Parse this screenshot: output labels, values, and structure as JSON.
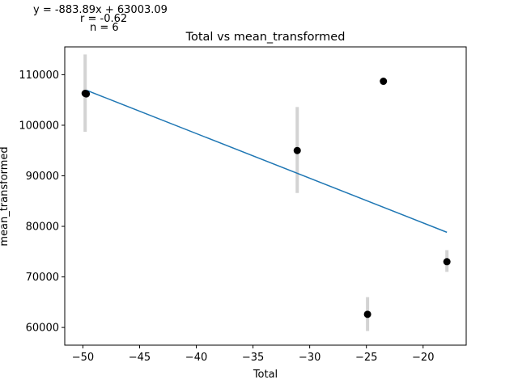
{
  "chart_data": {
    "type": "scatter",
    "title": "Total vs mean_transformed",
    "xlabel": "Total",
    "ylabel": "mean_transformed",
    "xlim": [
      -51.6,
      -16.2
    ],
    "ylim": [
      56500,
      115500
    ],
    "xticks": [
      -50,
      -45,
      -40,
      -35,
      -30,
      -25,
      -20
    ],
    "xtick_labels": [
      "−50",
      "−45",
      "−40",
      "−35",
      "−30",
      "−25",
      "−20"
    ],
    "yticks": [
      60000,
      70000,
      80000,
      90000,
      100000,
      110000
    ],
    "ytick_labels": [
      "60000",
      "70000",
      "80000",
      "90000",
      "100000",
      "110000"
    ],
    "grid": false,
    "points": [
      {
        "x": -49.8,
        "y": 106300,
        "err_low": 98700,
        "err_high": 114000
      },
      {
        "x": -49.7,
        "y": 106200,
        "err_low": 106200,
        "err_high": 106200
      },
      {
        "x": -31.1,
        "y": 95000,
        "err_low": 86600,
        "err_high": 103600
      },
      {
        "x": -24.9,
        "y": 62600,
        "err_low": 59300,
        "err_high": 66000
      },
      {
        "x": -23.5,
        "y": 108700,
        "err_low": 108700,
        "err_high": 108700
      },
      {
        "x": -17.9,
        "y": 73000,
        "err_low": 71000,
        "err_high": 75300
      }
    ],
    "fit_line": {
      "x": [
        -49.7,
        -17.9
      ],
      "y": [
        106933,
        78826
      ]
    },
    "colors": {
      "points": "#000000",
      "errorbars": "#d3d3d3",
      "fit": "#1f77b4"
    },
    "annotations": {
      "equation": "y = -883.89x + 63003.09",
      "r": "r = -0.62",
      "n": "n = 6"
    }
  }
}
